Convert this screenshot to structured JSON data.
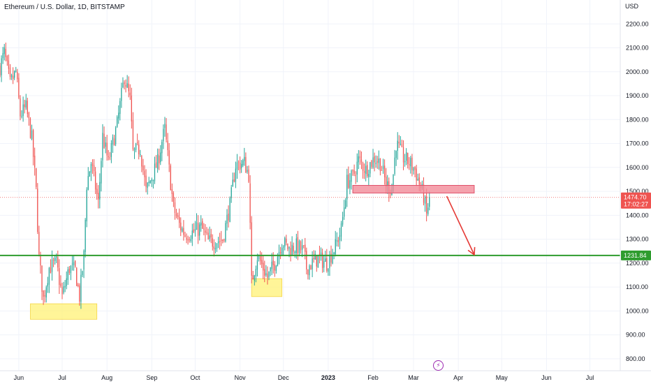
{
  "header": {
    "title": "Ethereum / U.S. Dollar, 1D, BITSTAMP"
  },
  "colors": {
    "up": "#26a69a",
    "down": "#ef5350",
    "support_line": "#2e9c2e",
    "resistance_zone": "#f28b99",
    "demand_zone": "#fff176",
    "arrow": "#e53935",
    "grid": "#f0f3fa"
  },
  "chart_data": {
    "type": "candlestick",
    "currency_label": "USD",
    "ylim": [
      750,
      2300
    ],
    "y_ticks": [
      {
        "value": 800,
        "label": "800.00"
      },
      {
        "value": 900,
        "label": "900.00"
      },
      {
        "value": 1000,
        "label": "1000.00"
      },
      {
        "value": 1100,
        "label": "1100.00"
      },
      {
        "value": 1200,
        "label": "1200.00"
      },
      {
        "value": 1300,
        "label": "1300.00"
      },
      {
        "value": 1400,
        "label": "1400.00"
      },
      {
        "value": 1500,
        "label": "1500.00"
      },
      {
        "value": 1600,
        "label": "1600.00"
      },
      {
        "value": 1700,
        "label": "1700.00"
      },
      {
        "value": 1800,
        "label": "1800.00"
      },
      {
        "value": 1900,
        "label": "1900.00"
      },
      {
        "value": 2000,
        "label": "2000.00"
      },
      {
        "value": 2100,
        "label": "2100.00"
      },
      {
        "value": 2200,
        "label": "2200.00"
      }
    ],
    "x_ticks": [
      {
        "date": "2022-06-01",
        "label": "Jun"
      },
      {
        "date": "2022-07-01",
        "label": "Jul"
      },
      {
        "date": "2022-08-01",
        "label": "Aug"
      },
      {
        "date": "2022-09-01",
        "label": "Sep"
      },
      {
        "date": "2022-10-01",
        "label": "Oct"
      },
      {
        "date": "2022-11-01",
        "label": "Nov"
      },
      {
        "date": "2022-12-01",
        "label": "Dec"
      },
      {
        "date": "2023-01-01",
        "label": "2023"
      },
      {
        "date": "2023-02-01",
        "label": "Feb"
      },
      {
        "date": "2023-03-01",
        "label": "Mar"
      },
      {
        "date": "2023-04-01",
        "label": "Apr"
      },
      {
        "date": "2023-05-01",
        "label": "May"
      },
      {
        "date": "2023-06-01",
        "label": "Jun"
      },
      {
        "date": "2023-07-01",
        "label": "Jul"
      }
    ],
    "xlim": [
      "2022-05-19",
      "2023-07-22"
    ],
    "current_price": {
      "value": 1474.7,
      "label": "1474.70",
      "countdown": "17:02:27"
    },
    "support_level": {
      "value": 1231.84,
      "label": "1231.84"
    },
    "resistance_zone": {
      "x0": "2023-01-18",
      "x1": "2023-04-12",
      "y0": 1493,
      "y1": 1525
    },
    "demand_zones": [
      {
        "x0": "2022-06-09",
        "x1": "2022-07-25",
        "y0": 965,
        "y1": 1030
      },
      {
        "x0": "2022-11-09",
        "x1": "2022-11-30",
        "y0": 1060,
        "y1": 1135
      }
    ],
    "projection_arrow": {
      "from": {
        "date": "2023-03-24",
        "value": 1480
      },
      "to": {
        "date": "2023-04-12",
        "value": 1235
      }
    },
    "waypoints": [
      [
        "2022-05-19",
        2020
      ],
      [
        "2022-05-22",
        2080
      ],
      [
        "2022-05-26",
        1950
      ],
      [
        "2022-05-30",
        2000
      ],
      [
        "2022-06-02",
        1820
      ],
      [
        "2022-06-06",
        1850
      ],
      [
        "2022-06-10",
        1720
      ],
      [
        "2022-06-13",
        1500
      ],
      [
        "2022-06-15",
        1220
      ],
      [
        "2022-06-18",
        1050
      ],
      [
        "2022-06-22",
        1180
      ],
      [
        "2022-06-27",
        1200
      ],
      [
        "2022-07-01",
        1060
      ],
      [
        "2022-07-06",
        1180
      ],
      [
        "2022-07-10",
        1170
      ],
      [
        "2022-07-13",
        1060
      ],
      [
        "2022-07-16",
        1230
      ],
      [
        "2022-07-18",
        1530
      ],
      [
        "2022-07-21",
        1620
      ],
      [
        "2022-07-26",
        1450
      ],
      [
        "2022-07-29",
        1730
      ],
      [
        "2022-08-02",
        1620
      ],
      [
        "2022-08-08",
        1780
      ],
      [
        "2022-08-13",
        1980
      ],
      [
        "2022-08-17",
        1880
      ],
      [
        "2022-08-19",
        1660
      ],
      [
        "2022-08-24",
        1680
      ],
      [
        "2022-08-28",
        1500
      ],
      [
        "2022-09-01",
        1560
      ],
      [
        "2022-09-05",
        1620
      ],
      [
        "2022-09-08",
        1710
      ],
      [
        "2022-09-10",
        1760
      ],
      [
        "2022-09-13",
        1590
      ],
      [
        "2022-09-16",
        1430
      ],
      [
        "2022-09-20",
        1360
      ],
      [
        "2022-09-24",
        1320
      ],
      [
        "2022-09-30",
        1330
      ],
      [
        "2022-10-05",
        1350
      ],
      [
        "2022-10-10",
        1290
      ],
      [
        "2022-10-13",
        1290
      ],
      [
        "2022-10-20",
        1300
      ],
      [
        "2022-10-25",
        1440
      ],
      [
        "2022-10-29",
        1610
      ],
      [
        "2022-11-04",
        1620
      ],
      [
        "2022-11-07",
        1570
      ],
      [
        "2022-11-09",
        1120
      ],
      [
        "2022-11-13",
        1230
      ],
      [
        "2022-11-20",
        1140
      ],
      [
        "2022-11-25",
        1200
      ],
      [
        "2022-11-30",
        1290
      ],
      [
        "2022-12-05",
        1260
      ],
      [
        "2022-12-10",
        1270
      ],
      [
        "2022-12-15",
        1250
      ],
      [
        "2022-12-17",
        1180
      ],
      [
        "2022-12-25",
        1220
      ],
      [
        "2022-12-31",
        1200
      ],
      [
        "2023-01-06",
        1270
      ],
      [
        "2023-01-10",
        1340
      ],
      [
        "2023-01-14",
        1540
      ],
      [
        "2023-01-18",
        1560
      ],
      [
        "2023-01-22",
        1630
      ],
      [
        "2023-01-27",
        1590
      ],
      [
        "2023-02-02",
        1640
      ],
      [
        "2023-02-06",
        1620
      ],
      [
        "2023-02-10",
        1530
      ],
      [
        "2023-02-14",
        1510
      ],
      [
        "2023-02-17",
        1700
      ],
      [
        "2023-02-22",
        1640
      ],
      [
        "2023-02-26",
        1620
      ],
      [
        "2023-03-02",
        1590
      ],
      [
        "2023-03-04",
        1550
      ],
      [
        "2023-03-08",
        1480
      ],
      [
        "2023-03-10",
        1400
      ],
      [
        "2023-03-12",
        1475
      ]
    ]
  }
}
